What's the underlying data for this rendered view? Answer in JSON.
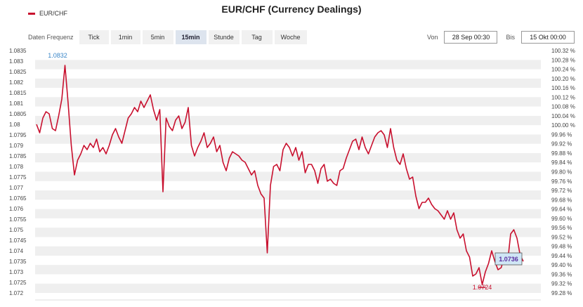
{
  "header": {
    "title": "EUR/CHF (Currency Dealings)",
    "legend_label": "EUR/CHF",
    "series_color": "#c8102e"
  },
  "toolbar": {
    "frequency_label": "Daten Frequenz",
    "buttons": [
      "Tick",
      "1min",
      "5min",
      "15min",
      "Stunde",
      "Tag",
      "Woche"
    ],
    "active": "15min"
  },
  "range": {
    "from_label": "Von",
    "from_value": "28 Sep 00:30",
    "to_label": "Bis",
    "to_value": "15 Okt 00:00"
  },
  "chart_data": {
    "type": "line",
    "grid": true,
    "ylim": [
      1.072,
      1.0835
    ],
    "y_ticks": [
      "1.0835",
      "1.083",
      "1.0825",
      "1.082",
      "1.0815",
      "1.081",
      "1.0805",
      "1.08",
      "1.0795",
      "1.079",
      "1.0785",
      "1.078",
      "1.0775",
      "1.077",
      "1.0765",
      "1.076",
      "1.0755",
      "1.075",
      "1.0745",
      "1.074",
      "1.0735",
      "1.073",
      "1.0725",
      "1.072"
    ],
    "y2_ticks": [
      "100.32 %",
      "100.28 %",
      "100.24 %",
      "100.20 %",
      "100.16 %",
      "100.12 %",
      "100.08 %",
      "100.04 %",
      "100.00 %",
      "99.96 %",
      "99.92 %",
      "99.88 %",
      "99.84 %",
      "99.80 %",
      "99.76 %",
      "99.72 %",
      "99.68 %",
      "99.64 %",
      "99.60 %",
      "99.56 %",
      "99.52 %",
      "99.48 %",
      "99.44 %",
      "99.40 %",
      "99.36 %",
      "99.32 %",
      "99.28 %"
    ],
    "annotations": {
      "high": "1.0832",
      "low": "1.0724",
      "last": "1.0736"
    },
    "series": [
      {
        "values": [
          1.08,
          1.0796,
          1.0803,
          1.0806,
          1.0805,
          1.0798,
          1.0797,
          1.0804,
          1.0812,
          1.0828,
          1.081,
          1.079,
          1.0776,
          1.0783,
          1.0786,
          1.079,
          1.0788,
          1.0791,
          1.0789,
          1.0793,
          1.0787,
          1.0789,
          1.0786,
          1.079,
          1.0795,
          1.0798,
          1.0794,
          1.0791,
          1.0797,
          1.0803,
          1.0805,
          1.0808,
          1.0806,
          1.0811,
          1.0808,
          1.0811,
          1.0814,
          1.0807,
          1.0802,
          1.0807,
          1.0768,
          1.0803,
          1.0799,
          1.0797,
          1.0802,
          1.0804,
          1.0798,
          1.0801,
          1.0808,
          1.079,
          1.0785,
          1.0789,
          1.0792,
          1.0796,
          1.0789,
          1.0791,
          1.0794,
          1.0787,
          1.079,
          1.0782,
          1.0778,
          1.0784,
          1.0787,
          1.0786,
          1.0785,
          1.0783,
          1.0782,
          1.0779,
          1.0776,
          1.0778,
          1.0771,
          1.0767,
          1.0765,
          1.0739,
          1.0771,
          1.078,
          1.0781,
          1.0778,
          1.0788,
          1.0791,
          1.0789,
          1.0785,
          1.0789,
          1.0783,
          1.0787,
          1.0777,
          1.0781,
          1.0781,
          1.0778,
          1.0772,
          1.0779,
          1.0781,
          1.0773,
          1.0774,
          1.0772,
          1.0771,
          1.0778,
          1.0779,
          1.0784,
          1.0788,
          1.0792,
          1.0793,
          1.0788,
          1.0794,
          1.0789,
          1.0786,
          1.079,
          1.0794,
          1.0796,
          1.0797,
          1.0795,
          1.0789,
          1.0798,
          1.0789,
          1.0783,
          1.0781,
          1.0786,
          1.0779,
          1.0774,
          1.0775,
          1.0766,
          1.076,
          1.0763,
          1.0763,
          1.0765,
          1.0762,
          1.076,
          1.0759,
          1.0757,
          1.0755,
          1.0759,
          1.0755,
          1.0758,
          1.075,
          1.0746,
          1.0748,
          1.074,
          1.0737,
          1.0728,
          1.0729,
          1.0732,
          1.0724,
          1.073,
          1.0734,
          1.074,
          1.0735,
          1.0731,
          1.0732,
          1.0737,
          1.0734,
          1.0748,
          1.075,
          1.0746,
          1.0738,
          1.0735
        ]
      }
    ]
  }
}
